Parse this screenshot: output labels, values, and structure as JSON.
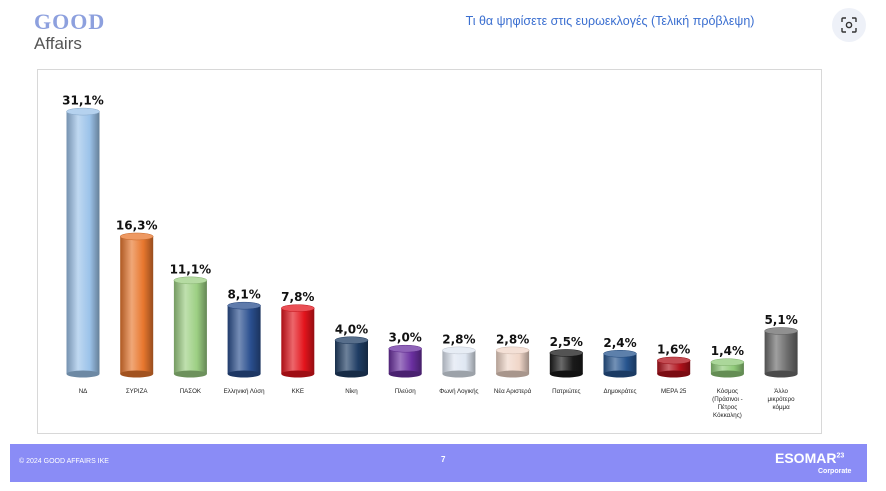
{
  "header": {
    "logo_good": "GOOD",
    "logo_affairs": "Affairs",
    "title": "Τι θα ψηφίσετε στις ευρωεκλογές (Τελική πρόβλεψη)"
  },
  "toolbar": {
    "scan_icon": "scan-icon"
  },
  "footer": {
    "copyright": "© 2024 GOOD AFFAIRS IKE",
    "page_number": "7",
    "brand": "ESOMAR",
    "brand_sup": "23",
    "brand_sub": "Corporate"
  },
  "chart_data": {
    "type": "bar",
    "title": "Τι θα ψηφίσετε στις ευρωεκλογές (Τελική πρόβλεψη)",
    "xlabel": "",
    "ylabel": "",
    "ylim": [
      0,
      32
    ],
    "grid": false,
    "legend": "none",
    "categories": [
      "ΝΔ",
      "ΣΥΡΙΖΑ",
      "ΠΑΣΟΚ",
      "Ελληνική Λύση",
      "ΚΚΕ",
      "Νίκη",
      "Πλεύση",
      "Φωνή Λογικής",
      "Νέα Αριστερά",
      "Πατριώτες",
      "Δημοκράτες",
      "ΜΕΡΑ 25",
      "Κόσμος (Πράσινοι - Πέτρος Κόκκαλης)",
      "Άλλο μικρότερο κόμμα"
    ],
    "values": [
      31.1,
      16.3,
      11.1,
      8.1,
      7.8,
      4.0,
      3.0,
      2.8,
      2.8,
      2.5,
      2.4,
      1.6,
      1.4,
      5.1
    ],
    "data_labels": [
      "31,1%",
      "16,3%",
      "11,1%",
      "8,1%",
      "7,8%",
      "4,0%",
      "3,0%",
      "2,8%",
      "2,8%",
      "2,5%",
      "2,4%",
      "1,6%",
      "1,4%",
      "5,1%"
    ],
    "category_lines": [
      [
        "ΝΔ"
      ],
      [
        "ΣΥΡΙΖΑ"
      ],
      [
        "ΠΑΣΟΚ"
      ],
      [
        "Ελληνική Λύση"
      ],
      [
        "ΚΚΕ"
      ],
      [
        "Νίκη"
      ],
      [
        "Πλεύση"
      ],
      [
        "Φωνή Λογικής"
      ],
      [
        "Νέα Αριστερά"
      ],
      [
        "Πατριώτες"
      ],
      [
        "Δημοκράτες"
      ],
      [
        "ΜΕΡΑ 25"
      ],
      [
        "Κόσμος",
        "(Πράσινοι -",
        "Πέτρος",
        "Κόκκαλης)"
      ],
      [
        "Άλλο",
        "μικρότερο",
        "κόμμα"
      ]
    ],
    "colors": [
      "#9cc3ea",
      "#e8772e",
      "#9ccf83",
      "#2a4f8f",
      "#e3141c",
      "#1f3d64",
      "#6a2fa0",
      "#dfe7f2",
      "#f0d6c8",
      "#1a1a1a",
      "#27558f",
      "#b0101a",
      "#8fca78",
      "#6b6b6b"
    ]
  }
}
